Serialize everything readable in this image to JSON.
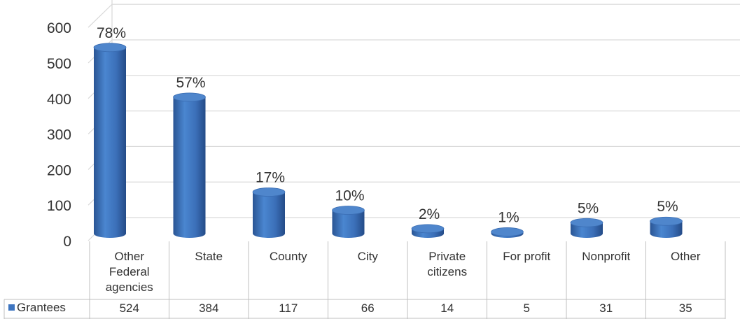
{
  "chart_data": {
    "type": "bar",
    "categories": [
      "Other Federal agencies",
      "State",
      "County",
      "City",
      "Private citizens",
      "For profit",
      "Nonprofit",
      "Other"
    ],
    "category_lines": [
      [
        "Other",
        "Federal",
        "agencies"
      ],
      [
        "State"
      ],
      [
        "County"
      ],
      [
        "City"
      ],
      [
        "Private",
        "citizens"
      ],
      [
        "For profit"
      ],
      [
        "Nonprofit"
      ],
      [
        "Other"
      ]
    ],
    "series": [
      {
        "name": "Grantees",
        "values": [
          524,
          384,
          117,
          66,
          14,
          5,
          31,
          35
        ],
        "color": "#3E75C0"
      }
    ],
    "data_labels": [
      "78%",
      "57%",
      "17%",
      "10%",
      "2%",
      "1%",
      "5%",
      "5%"
    ],
    "yticks": [
      "0",
      "100",
      "200",
      "300",
      "400",
      "500",
      "600"
    ],
    "ylim": [
      0,
      600
    ],
    "grid": true,
    "legend": "data-table",
    "bar_shape": "3d-cylinder"
  }
}
